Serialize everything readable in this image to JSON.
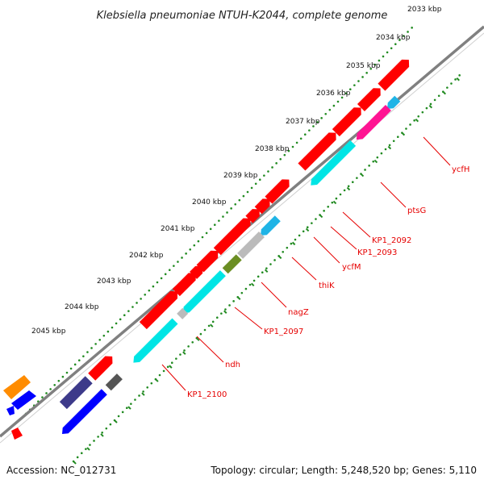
{
  "title": "Klebsiella pneumoniae NTUH-K2044, complete genome",
  "ticks": [
    {
      "label": "2033 kbp"
    },
    {
      "label": "2034 kbp"
    },
    {
      "label": "2035 kbp"
    },
    {
      "label": "2036 kbp"
    },
    {
      "label": "2037 kbp"
    },
    {
      "label": "2038 kbp"
    },
    {
      "label": "2039 kbp"
    },
    {
      "label": "2040 kbp"
    },
    {
      "label": "2041 kbp"
    },
    {
      "label": "2042 kbp"
    },
    {
      "label": "2043 kbp"
    },
    {
      "label": "2044 kbp"
    },
    {
      "label": "2045 kbp"
    }
  ],
  "gene_labels": [
    "ycfH",
    "ptsG",
    "KP1_2092",
    "KP1_2093",
    "ycfM",
    "thiK",
    "nagZ",
    "KP1_2097",
    "ndh",
    "KP1_2100"
  ],
  "colors": {
    "forward": "#ff0000",
    "reverse_cyan": "#00e5e5",
    "grey": "#bbbbbb",
    "dark_grey": "#555555",
    "magenta": "#ff1493",
    "olive": "#6b8e23",
    "light_blue": "#1fb4e6",
    "navy": "#3d3a8a",
    "blue": "#0000ff",
    "orange": "#ff8c00",
    "backbone": "#808080",
    "tick": "#228b22"
  },
  "footer": {
    "accession": "Accession: NC_012731",
    "summary": "Topology: circular; Length: 5,248,520 bp; Genes: 5,110"
  }
}
